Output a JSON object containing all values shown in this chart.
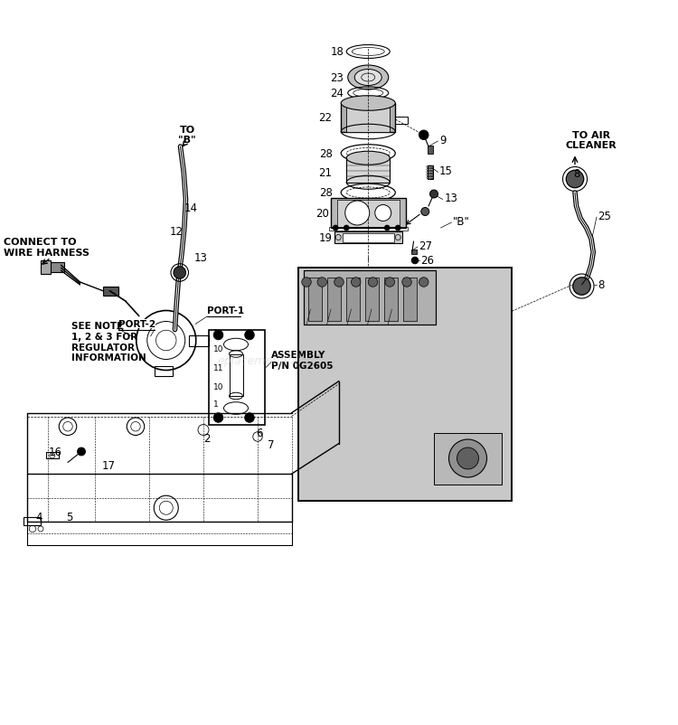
{
  "bg_color": "#ffffff",
  "line_color": "#000000",
  "fig_width": 7.5,
  "fig_height": 8.03,
  "dpi": 100,
  "labels": {
    "connect_to_wire_harness": "CONNECT TO\nWIRE HARNESS",
    "to_b": "TO\n\"B\"",
    "port1": "PORT-1",
    "port2": "PORT-2",
    "see_note": "SEE NOTE\n1, 2 & 3 FOR\nREGULATOR\nINFORMATION",
    "assembly": "ASSEMBLY\nP/N 0G2605",
    "to_air_cleaner": "TO AIR\nCLEANER",
    "b_label": "\"B\""
  }
}
